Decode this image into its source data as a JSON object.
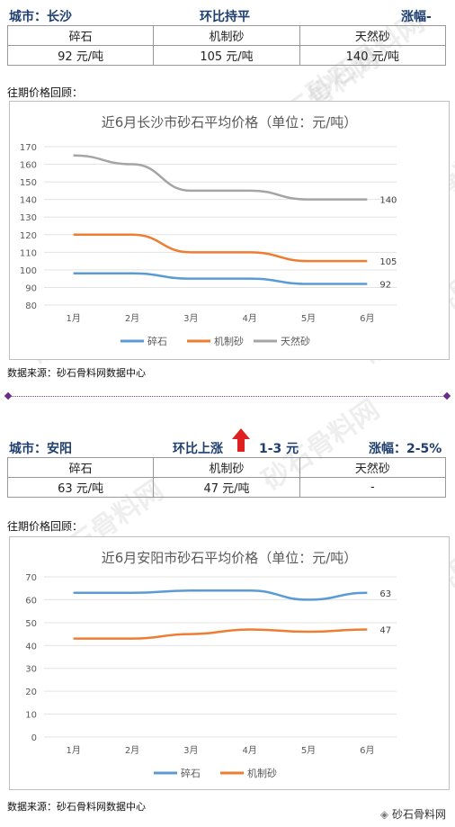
{
  "section1": {
    "city": "城市：长沙",
    "trend": "环比持平",
    "rise": "涨幅-",
    "headers": [
      "碎石",
      "机制砂",
      "天然砂"
    ],
    "prices": [
      "92 元/吨",
      "105 元/吨",
      "140 元/吨"
    ],
    "review_label": "往期价格回顾：",
    "source": "数据来源：砂石骨料网数据中心"
  },
  "section2": {
    "city": "城市：安阳",
    "trend": "环比上涨",
    "trend_amount": "1-3 元",
    "rise": "涨幅：2-5%",
    "headers": [
      "碎石",
      "机制砂",
      "天然砂"
    ],
    "prices": [
      "63 元/吨",
      "47 元/吨",
      "-"
    ],
    "review_label": "往期价格回顾：",
    "source": "数据来源：砂石骨料网数据中心"
  },
  "watermark_text": "砂石骨料网",
  "footer_brand": "砂石骨料网",
  "chart_data": [
    {
      "type": "line",
      "title": "近6月长沙市砂石平均价格（单位：元/吨）",
      "categories": [
        "1月",
        "2月",
        "3月",
        "4月",
        "5月",
        "6月"
      ],
      "ylim": [
        80,
        170
      ],
      "yticks": [
        80,
        90,
        100,
        110,
        120,
        130,
        140,
        150,
        160,
        170
      ],
      "grid": true,
      "legend": "bottom",
      "series": [
        {
          "name": "碎石",
          "color": "#5b9bd5",
          "values": [
            98,
            98,
            95,
            95,
            92,
            92
          ],
          "end_label": "92"
        },
        {
          "name": "机制砂",
          "color": "#ed7d31",
          "values": [
            120,
            120,
            110,
            110,
            105,
            105
          ],
          "end_label": "105"
        },
        {
          "name": "天然砂",
          "color": "#a5a5a5",
          "values": [
            165,
            160,
            145,
            145,
            140,
            140
          ],
          "end_label": "140"
        }
      ]
    },
    {
      "type": "line",
      "title": "近6月安阳市砂石平均价格（单位：元/吨）",
      "categories": [
        "1月",
        "2月",
        "3月",
        "4月",
        "5月",
        "6月"
      ],
      "ylim": [
        0,
        70
      ],
      "yticks": [
        0,
        10,
        20,
        30,
        40,
        50,
        60,
        70
      ],
      "grid": true,
      "legend": "bottom",
      "series": [
        {
          "name": "碎石",
          "color": "#5b9bd5",
          "values": [
            63,
            63,
            64,
            64,
            60,
            63
          ],
          "end_label": "63"
        },
        {
          "name": "机制砂",
          "color": "#ed7d31",
          "values": [
            43,
            43,
            45,
            47,
            46,
            47
          ],
          "end_label": "47"
        }
      ]
    }
  ]
}
